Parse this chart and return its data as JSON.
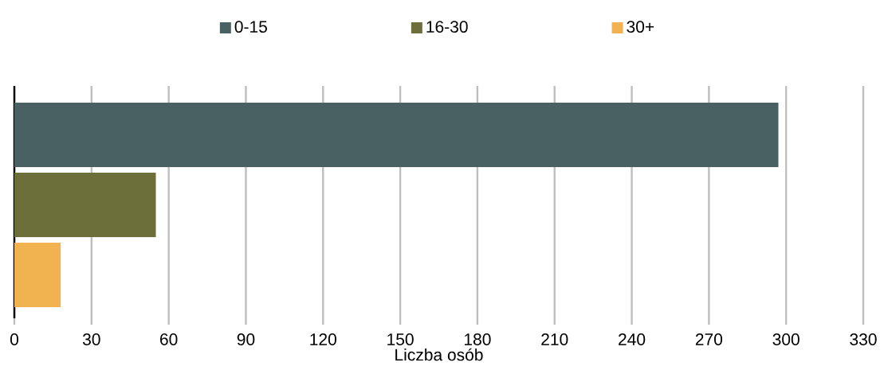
{
  "chart_data": {
    "type": "bar",
    "orientation": "horizontal",
    "categories": [
      null
    ],
    "series": [
      {
        "name": "0-15",
        "color": "#4a6163",
        "values": [
          297
        ]
      },
      {
        "name": "16-30",
        "color": "#6c6f3a",
        "values": [
          55
        ]
      },
      {
        "name": "30+",
        "color": "#f0b350",
        "values": [
          18
        ]
      }
    ],
    "xlabel": "Liczba osób",
    "xlim": [
      0,
      330
    ],
    "xticks": [
      0,
      30,
      60,
      90,
      120,
      150,
      180,
      210,
      240,
      270,
      300,
      330
    ],
    "grid": "x",
    "legend": "top"
  }
}
